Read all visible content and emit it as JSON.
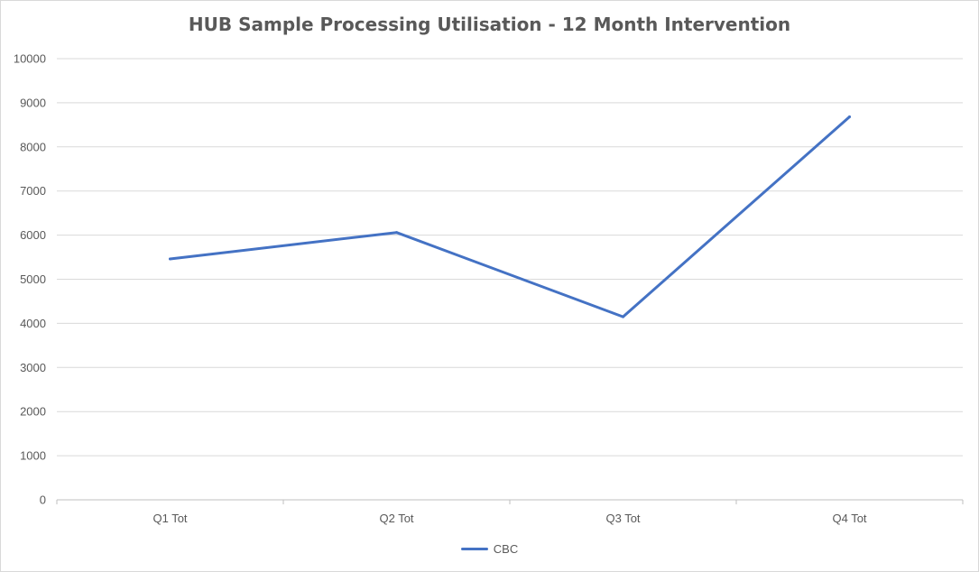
{
  "chart_data": {
    "type": "line",
    "title": "HUB Sample Processing Utilisation - 12 Month Intervention",
    "categories": [
      "Q1 Tot",
      "Q2 Tot",
      "Q3 Tot",
      "Q4 Tot"
    ],
    "series": [
      {
        "name": "CBC",
        "color": "#4472C4",
        "values": [
          5460,
          6060,
          4150,
          8680
        ]
      }
    ],
    "ylim": [
      0,
      10000
    ],
    "yticks": [
      "0",
      "1000",
      "2000",
      "3000",
      "4000",
      "5000",
      "6000",
      "7000",
      "8000",
      "9000",
      "10000"
    ],
    "grid": true,
    "legend_position": "bottom"
  }
}
